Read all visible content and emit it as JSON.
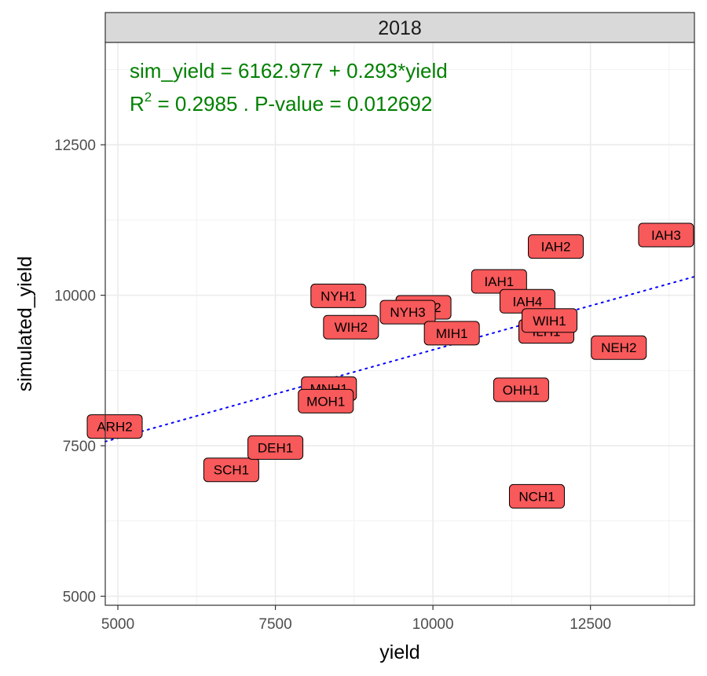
{
  "chart_data": {
    "type": "scatter",
    "facet_label": "2018",
    "xlabel": "yield",
    "ylabel": "simulated_yield",
    "xlim": [
      4800,
      14150
    ],
    "ylim": [
      4850,
      14200
    ],
    "x_ticks": [
      5000,
      7500,
      10000,
      12500
    ],
    "y_ticks": [
      5000,
      7500,
      10000,
      12500
    ],
    "grid": true,
    "points": [
      {
        "label": "ARH2",
        "x": 4950,
        "y": 7820
      },
      {
        "label": "SCH1",
        "x": 6800,
        "y": 7100
      },
      {
        "label": "DEH1",
        "x": 7500,
        "y": 7470
      },
      {
        "label": "MNH1",
        "x": 8350,
        "y": 8450
      },
      {
        "label": "MOH1",
        "x": 8300,
        "y": 8240
      },
      {
        "label": "NYH1",
        "x": 8500,
        "y": 9990
      },
      {
        "label": "WIH2",
        "x": 8700,
        "y": 9470
      },
      {
        "label": "NYH2",
        "x": 9850,
        "y": 9800
      },
      {
        "label": "NYH3",
        "x": 9600,
        "y": 9720
      },
      {
        "label": "MIH1",
        "x": 10300,
        "y": 9370
      },
      {
        "label": "IAH1",
        "x": 11050,
        "y": 10230
      },
      {
        "label": "IAH4",
        "x": 11500,
        "y": 9900
      },
      {
        "label": "ILH1",
        "x": 11800,
        "y": 9400
      },
      {
        "label": "WIH1",
        "x": 11850,
        "y": 9580
      },
      {
        "label": "IAH2",
        "x": 11950,
        "y": 10810
      },
      {
        "label": "IAH3",
        "x": 13700,
        "y": 11000
      },
      {
        "label": "NEH2",
        "x": 12950,
        "y": 9130
      },
      {
        "label": "OHH1",
        "x": 11400,
        "y": 8430
      },
      {
        "label": "NCH1",
        "x": 11650,
        "y": 6660
      }
    ],
    "fit_line": {
      "intercept": 6162.977,
      "slope": 0.293,
      "color": "#0000ff",
      "style": "dotted"
    },
    "annotation": {
      "line1": "sim_yield = 6162.977 + 0.293*yield",
      "line2_r": "R",
      "line2_sup": "2",
      "line2_rest": " = 0.2985 . P-value = 0.012692",
      "color": "#008000"
    },
    "label_fill": "#f8595a",
    "label_border": "#000000"
  }
}
